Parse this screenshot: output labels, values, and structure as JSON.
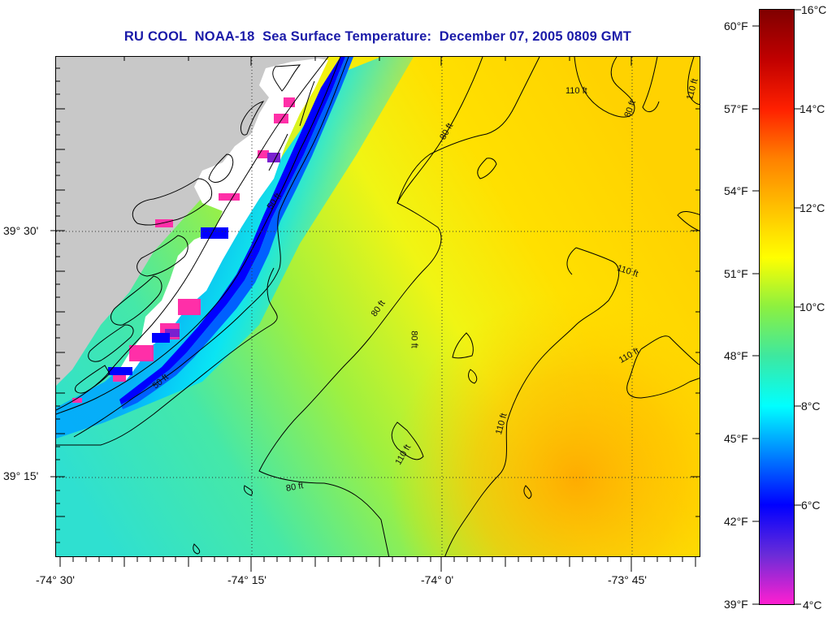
{
  "title": "RU COOL  NOAA-18  Sea Surface Temperature:  December 07, 2005 0809 GMT",
  "map": {
    "lon_labels": [
      "-74° 30'",
      "-74° 15'",
      "-74° 0'",
      "-73° 45'"
    ],
    "lat_labels": [
      "39° 30'",
      "39° 15'"
    ],
    "contour_labels": [
      "110 ft",
      "80 ft",
      "110 ft",
      "80 ft",
      "50 ft",
      "110 ft",
      "80 ft",
      "80 ft",
      "110 ft",
      "50 ft",
      "110 ft",
      "110 ft",
      "80 ft"
    ],
    "colors": {
      "land": "#c8c8c8",
      "cloud": "#ffffff",
      "contour": "#000000"
    }
  },
  "colorbar": {
    "celsius_labels": [
      "16°C",
      "14°C",
      "12°C",
      "10°C",
      "8°C",
      "6°C",
      "4°C"
    ],
    "fahrenheit_labels": [
      "60°F",
      "57°F",
      "54°F",
      "51°F",
      "48°F",
      "45°F",
      "42°F",
      "39°F"
    ],
    "colors": [
      "#ff1fd0",
      "#6a2cd8",
      "#0000ff",
      "#0080ff",
      "#00ffff",
      "#3de8a0",
      "#8cf040",
      "#ffff00",
      "#ffc000",
      "#ff8000",
      "#ff2000",
      "#c00000",
      "#800000"
    ]
  }
}
